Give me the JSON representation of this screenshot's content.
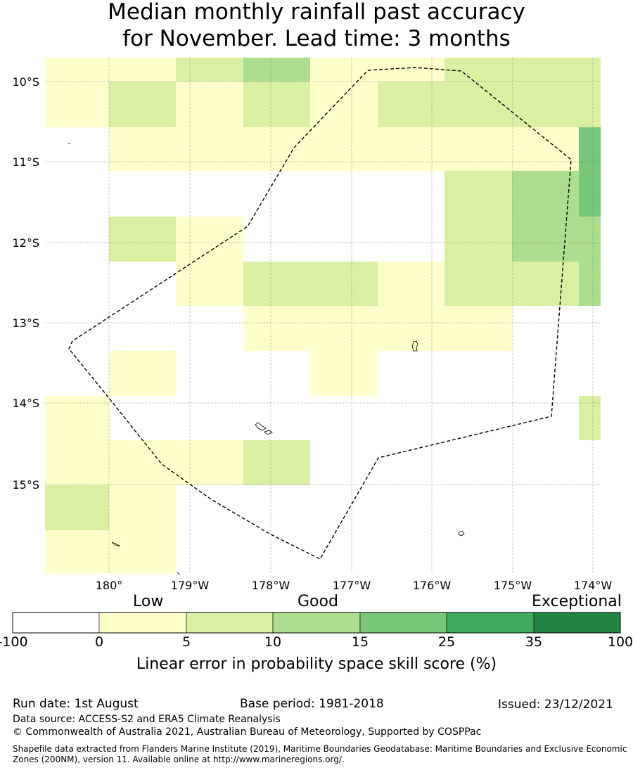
{
  "title": {
    "line1": "Median monthly rainfall past accuracy",
    "line2": "for November. Lead time: 3 months"
  },
  "map": {
    "lat_labels": [
      "10°S",
      "11°S",
      "12°S",
      "13°S",
      "14°S",
      "15°S"
    ],
    "lon_labels": [
      "180°",
      "179°W",
      "178°W",
      "177°W",
      "176°W",
      "175°W",
      "174°W"
    ],
    "grid_lines": true,
    "boundary_style": "dashed",
    "categories": {
      "a": "#ffffcc",
      "b": "#d9f0a3",
      "c": "#addd8e",
      "d": "#78c679"
    }
  },
  "colorbar": {
    "words": [
      "Low",
      "Good",
      "Exceptional"
    ],
    "ticks": [
      "-100",
      "0",
      "5",
      "10",
      "15",
      "25",
      "35",
      "100"
    ],
    "colors": [
      "#ffffff",
      "#ffffcc",
      "#d9f0a3",
      "#addd8e",
      "#78c679",
      "#41ab5d",
      "#238443"
    ],
    "caption": "Linear error in probability space skill score (%)"
  },
  "footer": {
    "run_date": "Run date: 1st August",
    "base_period": "Base period: 1981-2018",
    "issued": "Issued: 23/12/2021",
    "data_source": "Data source: ACCESS-S2 and ERA5 Climate Reanalysis",
    "copyright": "© Commonwealth of Australia 2021, Australian Bureau of Meteorology, Supported by COSPPac",
    "shapefile": "Shapefile data extracted from Flanders Marine Institute (2019), Maritime Boundaries Geodatabase: Maritime Boundaries and Exclusive Economic Zones (200NM), version 11. Available online at http://www.marineregions.org/."
  }
}
